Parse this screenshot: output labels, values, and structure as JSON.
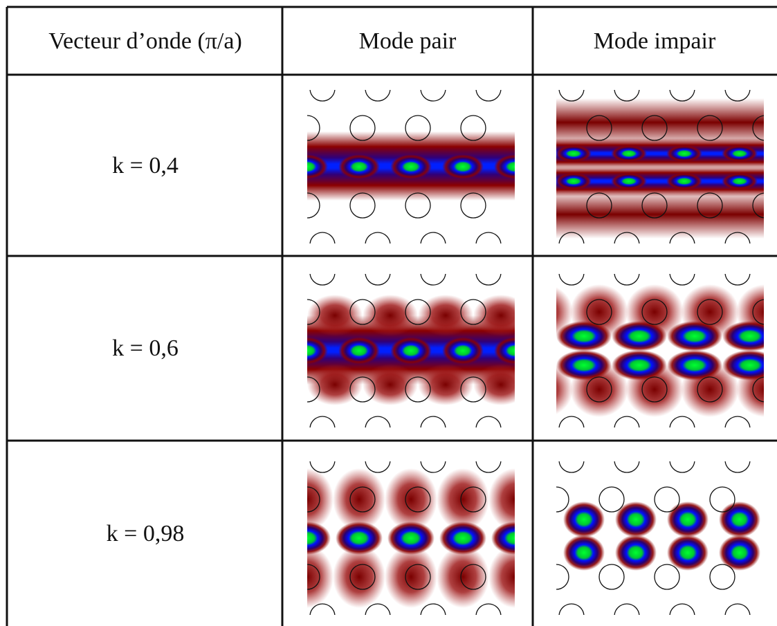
{
  "table": {
    "header": [
      "Vecteur d’onde (π/a)",
      "Mode pair",
      "Mode impair"
    ],
    "rows": [
      [
        "k = 0,4"
      ],
      [
        "k = 0,6"
      ],
      [
        "k = 0,98"
      ]
    ]
  }
}
